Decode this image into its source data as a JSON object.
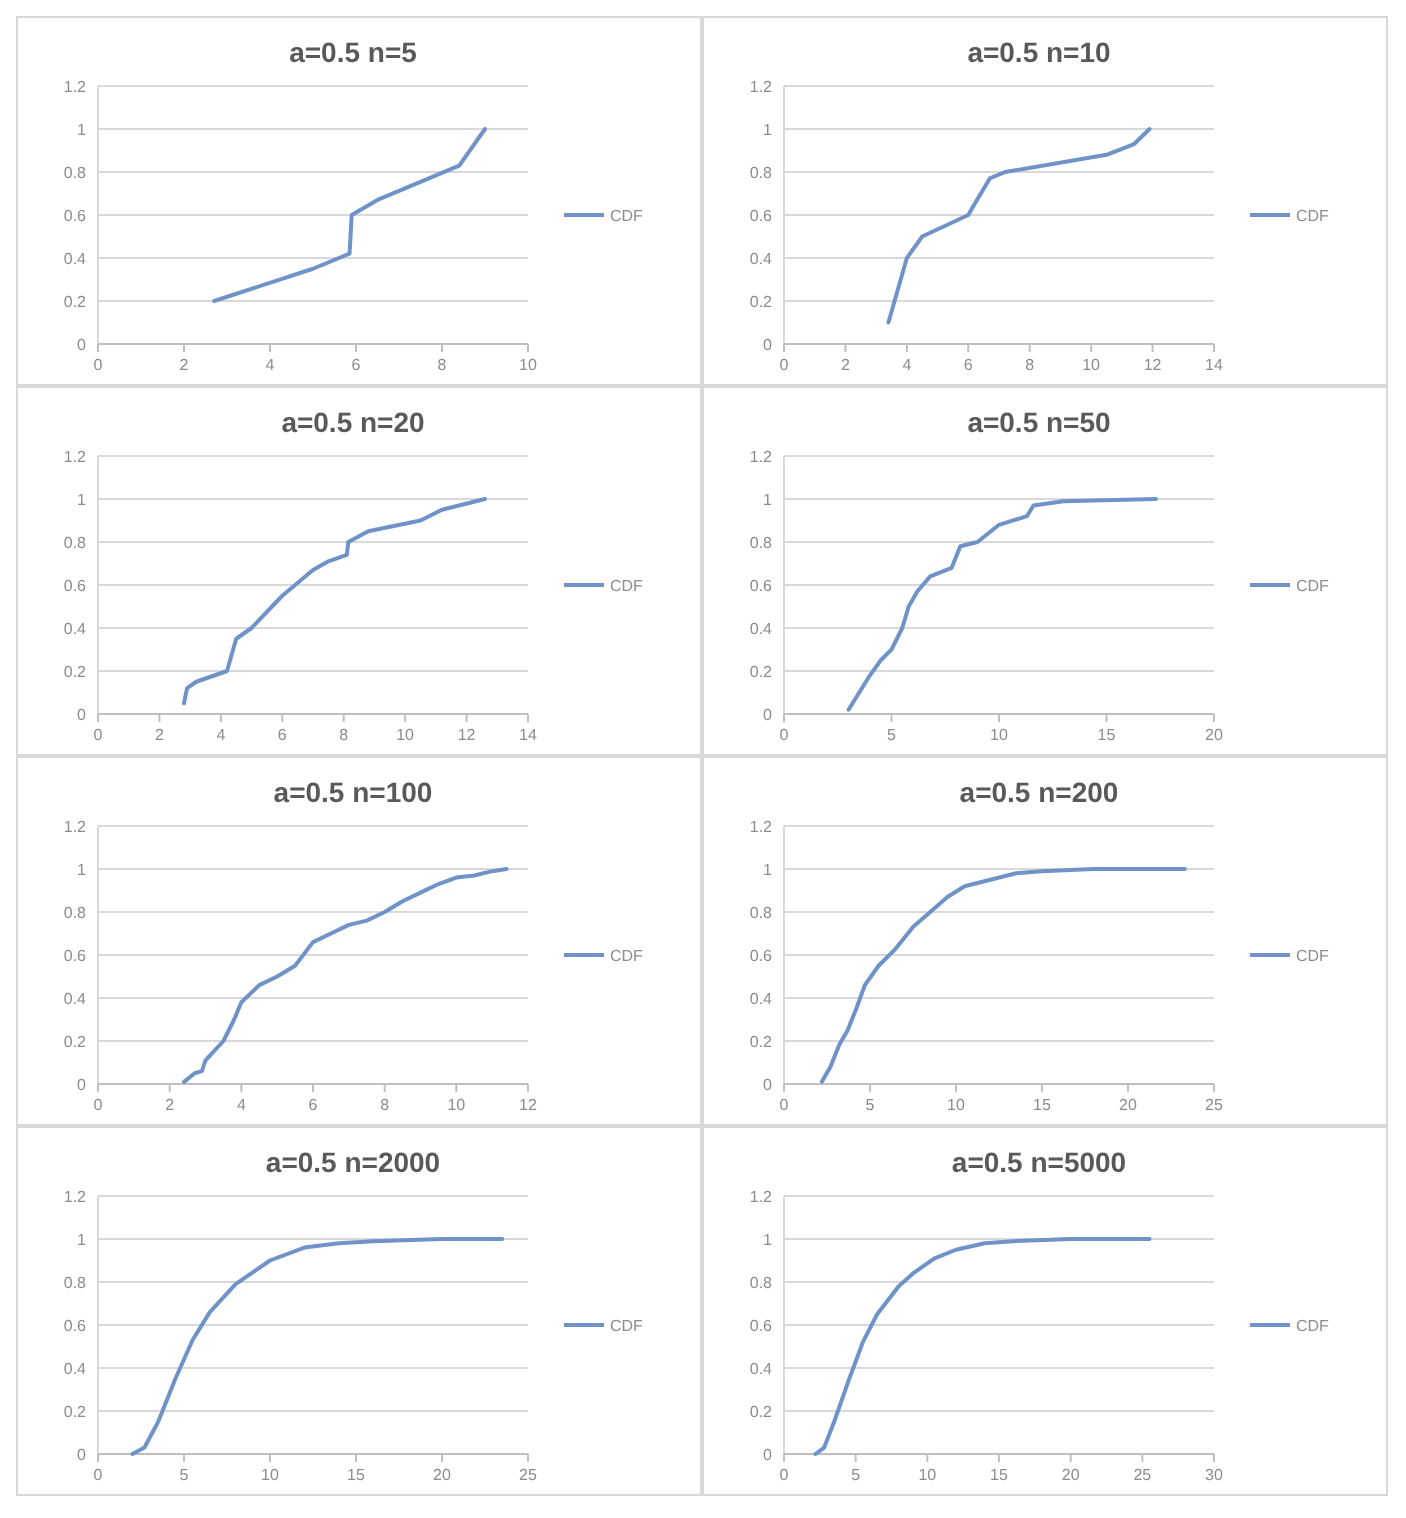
{
  "chart_data": [
    {
      "type": "line",
      "title": "a=0.5  n=5",
      "xlim": [
        0,
        10
      ],
      "xticks": [
        0,
        2,
        4,
        6,
        8,
        10
      ],
      "ylim": [
        0,
        1.2
      ],
      "yticks": [
        0,
        0.2,
        0.4,
        0.6,
        0.8,
        1,
        1.2
      ],
      "grid": "y",
      "legend": "right",
      "series": [
        {
          "name": "CDF",
          "color": "#6f93c8",
          "x": [
            2.7,
            5,
            5.85,
            5.9,
            6.5,
            8.4,
            9
          ],
          "values": [
            0.2,
            0.35,
            0.42,
            0.6,
            0.67,
            0.83,
            1
          ]
        }
      ]
    },
    {
      "type": "line",
      "title": "a=0.5  n=10",
      "xlim": [
        0,
        14
      ],
      "xticks": [
        0,
        2,
        4,
        6,
        8,
        10,
        12,
        14
      ],
      "ylim": [
        0,
        1.2
      ],
      "yticks": [
        0,
        0.2,
        0.4,
        0.6,
        0.8,
        1,
        1.2
      ],
      "grid": "y",
      "legend": "right",
      "series": [
        {
          "name": "CDF",
          "color": "#6f93c8",
          "x": [
            3.4,
            3.6,
            4,
            4.5,
            6,
            6.2,
            6.7,
            7.2,
            10.5,
            11.4,
            11.9
          ],
          "values": [
            0.1,
            0.2,
            0.4,
            0.5,
            0.6,
            0.65,
            0.77,
            0.8,
            0.88,
            0.93,
            1
          ]
        }
      ]
    },
    {
      "type": "line",
      "title": "a=0.5  n=20",
      "xlim": [
        0,
        14
      ],
      "xticks": [
        0,
        2,
        4,
        6,
        8,
        10,
        12,
        14
      ],
      "ylim": [
        0,
        1.2
      ],
      "yticks": [
        0,
        0.2,
        0.4,
        0.6,
        0.8,
        1,
        1.2
      ],
      "grid": "y",
      "legend": "right",
      "series": [
        {
          "name": "CDF",
          "color": "#6f93c8",
          "x": [
            2.8,
            2.9,
            3.2,
            4.2,
            4.5,
            5,
            6,
            7,
            7.5,
            8.1,
            8.15,
            8.8,
            10.5,
            11.2,
            12.6
          ],
          "values": [
            0.05,
            0.12,
            0.15,
            0.2,
            0.35,
            0.4,
            0.55,
            0.67,
            0.71,
            0.74,
            0.8,
            0.85,
            0.9,
            0.95,
            1
          ]
        }
      ]
    },
    {
      "type": "line",
      "title": "a=0.5 n=50",
      "xlim": [
        0,
        20
      ],
      "xticks": [
        0,
        5,
        10,
        15,
        20
      ],
      "ylim": [
        0,
        1.2
      ],
      "yticks": [
        0,
        0.2,
        0.4,
        0.6,
        0.8,
        1,
        1.2
      ],
      "grid": "y",
      "legend": "right",
      "series": [
        {
          "name": "CDF",
          "color": "#6f93c8",
          "x": [
            3,
            3.5,
            4,
            4.5,
            5,
            5.5,
            5.8,
            6.2,
            6.8,
            7.8,
            8.2,
            9,
            10,
            11.3,
            11.6,
            13,
            17.3
          ],
          "values": [
            0.02,
            0.1,
            0.18,
            0.25,
            0.3,
            0.4,
            0.5,
            0.57,
            0.64,
            0.68,
            0.78,
            0.8,
            0.88,
            0.92,
            0.97,
            0.99,
            1
          ]
        }
      ]
    },
    {
      "type": "line",
      "title": "a=0.5 n=100",
      "xlim": [
        0,
        12
      ],
      "xticks": [
        0,
        2,
        4,
        6,
        8,
        10,
        12
      ],
      "ylim": [
        0,
        1.2
      ],
      "yticks": [
        0,
        0.2,
        0.4,
        0.6,
        0.8,
        1,
        1.2
      ],
      "grid": "y",
      "legend": "right",
      "series": [
        {
          "name": "CDF",
          "color": "#6f93c8",
          "x": [
            2.4,
            2.7,
            2.9,
            3,
            3.5,
            3.8,
            4,
            4.5,
            5,
            5.5,
            6,
            6.5,
            7,
            7.5,
            8,
            8.5,
            9,
            9.5,
            10,
            10.5,
            11,
            11.4
          ],
          "values": [
            0.01,
            0.05,
            0.06,
            0.11,
            0.2,
            0.3,
            0.38,
            0.46,
            0.5,
            0.55,
            0.66,
            0.7,
            0.74,
            0.76,
            0.8,
            0.85,
            0.89,
            0.93,
            0.96,
            0.97,
            0.99,
            1
          ]
        }
      ]
    },
    {
      "type": "line",
      "title": "a=0.5 n=200",
      "xlim": [
        0,
        25
      ],
      "xticks": [
        0,
        5,
        10,
        15,
        20,
        25
      ],
      "ylim": [
        0,
        1.2
      ],
      "yticks": [
        0,
        0.2,
        0.4,
        0.6,
        0.8,
        1,
        1.2
      ],
      "grid": "y",
      "legend": "right",
      "series": [
        {
          "name": "CDF",
          "color": "#6f93c8",
          "x": [
            2.2,
            2.7,
            3.2,
            3.7,
            4.2,
            4.7,
            5.5,
            6.5,
            7.5,
            8.5,
            9.5,
            10.5,
            12,
            13.5,
            15,
            18,
            23.3
          ],
          "values": [
            0.01,
            0.08,
            0.18,
            0.25,
            0.35,
            0.46,
            0.55,
            0.63,
            0.73,
            0.8,
            0.87,
            0.92,
            0.95,
            0.98,
            0.99,
            1,
            1
          ]
        }
      ]
    },
    {
      "type": "line",
      "title": "a=0.5 n=2000",
      "xlim": [
        0,
        25
      ],
      "xticks": [
        0,
        5,
        10,
        15,
        20,
        25
      ],
      "ylim": [
        0,
        1.2
      ],
      "yticks": [
        0,
        0.2,
        0.4,
        0.6,
        0.8,
        1,
        1.2
      ],
      "grid": "y",
      "legend": "right",
      "series": [
        {
          "name": "CDF",
          "color": "#6f93c8",
          "x": [
            2,
            2.7,
            3.5,
            4.5,
            5.5,
            6.5,
            8,
            10,
            12,
            14,
            16,
            20,
            23.5
          ],
          "values": [
            0,
            0.03,
            0.15,
            0.35,
            0.53,
            0.66,
            0.79,
            0.9,
            0.96,
            0.98,
            0.99,
            1,
            1
          ]
        }
      ]
    },
    {
      "type": "line",
      "title": "a=0.5  n=5000",
      "xlim": [
        0,
        30
      ],
      "xticks": [
        0,
        5,
        10,
        15,
        20,
        25,
        30
      ],
      "ylim": [
        0,
        1.2
      ],
      "yticks": [
        0,
        0.2,
        0.4,
        0.6,
        0.8,
        1,
        1.2
      ],
      "grid": "y",
      "legend": "right",
      "series": [
        {
          "name": "CDF",
          "color": "#6f93c8",
          "x": [
            2.2,
            2.8,
            3.5,
            4.5,
            5.5,
            6.5,
            8,
            9,
            10.5,
            12,
            14,
            16,
            20,
            25.5
          ],
          "values": [
            0,
            0.03,
            0.15,
            0.34,
            0.52,
            0.65,
            0.78,
            0.84,
            0.91,
            0.95,
            0.98,
            0.99,
            1,
            1
          ]
        }
      ]
    }
  ]
}
